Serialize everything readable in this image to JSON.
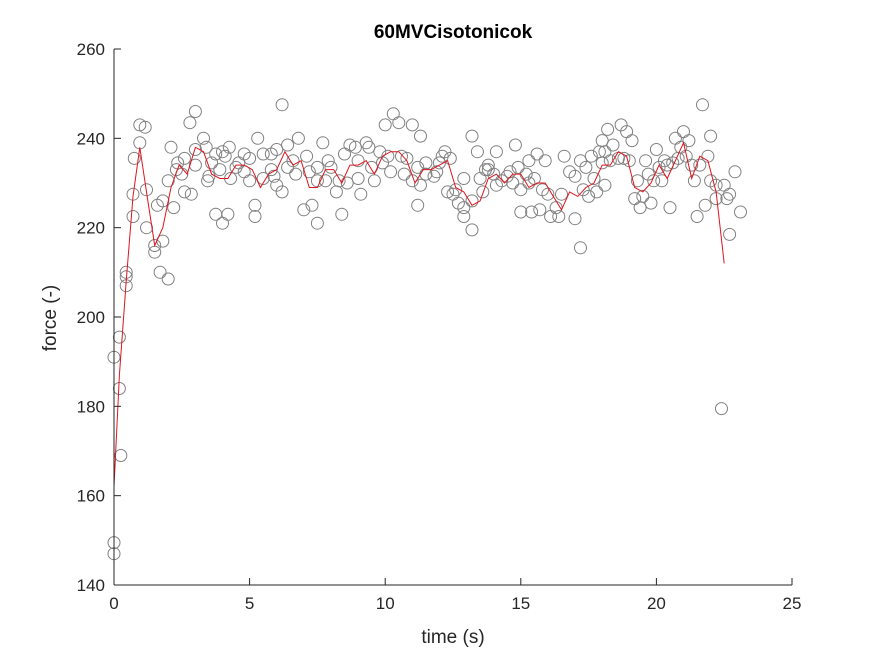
{
  "chart_data": {
    "type": "scatter",
    "title": "60MVCisotonicok",
    "xlabel": "time (s)",
    "ylabel": "force (-)",
    "xlim": [
      0,
      25
    ],
    "ylim": [
      140,
      260
    ],
    "xticks": [
      0,
      5,
      10,
      15,
      20,
      25
    ],
    "yticks": [
      140,
      160,
      180,
      200,
      220,
      240,
      260
    ],
    "grid": false,
    "colors": {
      "points": "#808080",
      "line": "#e0141e",
      "axis": "#262626"
    },
    "series": [
      {
        "type": "scatter",
        "marker": "circle-open",
        "points": [
          [
            0.0,
            147
          ],
          [
            0.0,
            149.5
          ],
          [
            0.0,
            191
          ],
          [
            0.2,
            184
          ],
          [
            0.2,
            195.5
          ],
          [
            0.25,
            169
          ],
          [
            0.45,
            207
          ],
          [
            0.45,
            209
          ],
          [
            0.45,
            210
          ],
          [
            0.7,
            222.5
          ],
          [
            0.7,
            227.5
          ],
          [
            0.75,
            235.5
          ],
          [
            0.95,
            239
          ],
          [
            0.95,
            243
          ],
          [
            1.15,
            242.5
          ],
          [
            1.2,
            228.5
          ],
          [
            1.2,
            220
          ],
          [
            1.5,
            214.5
          ],
          [
            1.5,
            216
          ],
          [
            1.6,
            225
          ],
          [
            1.7,
            210
          ],
          [
            1.8,
            217
          ],
          [
            1.8,
            226
          ],
          [
            2.0,
            208.5
          ],
          [
            2.0,
            230.5
          ],
          [
            2.1,
            238
          ],
          [
            2.2,
            224.5
          ],
          [
            2.3,
            233
          ],
          [
            2.35,
            234.5
          ],
          [
            2.5,
            232
          ],
          [
            2.6,
            228
          ],
          [
            2.6,
            235.5
          ],
          [
            2.8,
            243.5
          ],
          [
            2.85,
            227.5
          ],
          [
            3.0,
            234
          ],
          [
            3.0,
            237.5
          ],
          [
            3.0,
            246
          ],
          [
            3.3,
            240
          ],
          [
            3.4,
            238
          ],
          [
            3.45,
            230.5
          ],
          [
            3.5,
            231.5
          ],
          [
            3.6,
            234.5
          ],
          [
            3.75,
            223
          ],
          [
            3.75,
            236.5
          ],
          [
            3.9,
            233
          ],
          [
            4.0,
            221
          ],
          [
            4.0,
            237
          ],
          [
            4.1,
            236
          ],
          [
            4.2,
            223
          ],
          [
            4.25,
            238
          ],
          [
            4.3,
            231
          ],
          [
            4.5,
            233.5
          ],
          [
            4.6,
            234.5
          ],
          [
            4.8,
            232.5
          ],
          [
            4.8,
            236.5
          ],
          [
            5.0,
            230.5
          ],
          [
            5.0,
            235.5
          ],
          [
            5.2,
            222.5
          ],
          [
            5.2,
            225
          ],
          [
            5.3,
            240
          ],
          [
            5.5,
            236.5
          ],
          [
            5.5,
            231
          ],
          [
            5.8,
            236.5
          ],
          [
            5.8,
            233
          ],
          [
            5.9,
            231.5
          ],
          [
            6.0,
            229.5
          ],
          [
            6.0,
            237.5
          ],
          [
            6.2,
            228
          ],
          [
            6.2,
            247.5
          ],
          [
            6.4,
            233.5
          ],
          [
            6.4,
            238.5
          ],
          [
            6.6,
            235
          ],
          [
            6.7,
            232
          ],
          [
            6.8,
            240
          ],
          [
            7.0,
            224
          ],
          [
            7.1,
            236
          ],
          [
            7.2,
            232.5
          ],
          [
            7.3,
            225
          ],
          [
            7.5,
            230.5
          ],
          [
            7.5,
            233.5
          ],
          [
            7.5,
            221
          ],
          [
            7.7,
            239
          ],
          [
            7.8,
            230.5
          ],
          [
            7.9,
            235
          ],
          [
            8.0,
            233.5
          ],
          [
            8.2,
            228
          ],
          [
            8.3,
            230.5
          ],
          [
            8.4,
            223
          ],
          [
            8.5,
            236.5
          ],
          [
            8.6,
            230
          ],
          [
            8.7,
            238.5
          ],
          [
            8.9,
            238
          ],
          [
            9.0,
            235
          ],
          [
            9.0,
            231
          ],
          [
            9.1,
            227.5
          ],
          [
            9.3,
            239
          ],
          [
            9.4,
            238
          ],
          [
            9.5,
            233.5
          ],
          [
            9.6,
            230.5
          ],
          [
            9.8,
            237
          ],
          [
            9.9,
            234.5
          ],
          [
            10.0,
            243
          ],
          [
            10.1,
            236
          ],
          [
            10.2,
            232.5
          ],
          [
            10.3,
            245.5
          ],
          [
            10.5,
            243.5
          ],
          [
            10.6,
            236
          ],
          [
            10.7,
            232
          ],
          [
            10.8,
            235.5
          ],
          [
            11.0,
            243
          ],
          [
            11.0,
            230.5
          ],
          [
            11.2,
            233.5
          ],
          [
            11.2,
            225
          ],
          [
            11.3,
            229.5
          ],
          [
            11.3,
            240.5
          ],
          [
            11.5,
            232
          ],
          [
            11.5,
            234.5
          ],
          [
            11.8,
            231.5
          ],
          [
            11.9,
            232.5
          ],
          [
            12.0,
            234.5
          ],
          [
            12.1,
            236
          ],
          [
            12.2,
            237
          ],
          [
            12.3,
            228
          ],
          [
            12.4,
            235.5
          ],
          [
            12.5,
            227.5
          ],
          [
            12.6,
            228.5
          ],
          [
            12.7,
            225.5
          ],
          [
            12.9,
            231
          ],
          [
            12.9,
            224.5
          ],
          [
            12.9,
            222.5
          ],
          [
            13.2,
            219.5
          ],
          [
            13.2,
            226
          ],
          [
            13.2,
            240.5
          ],
          [
            13.4,
            237
          ],
          [
            13.5,
            231
          ],
          [
            13.6,
            228
          ],
          [
            13.7,
            233
          ],
          [
            13.8,
            234
          ],
          [
            13.8,
            233
          ],
          [
            14.0,
            232
          ],
          [
            14.1,
            237
          ],
          [
            14.1,
            229.5
          ],
          [
            14.3,
            230.5
          ],
          [
            14.5,
            231.5
          ],
          [
            14.6,
            232.5
          ],
          [
            14.7,
            230
          ],
          [
            14.8,
            238.5
          ],
          [
            14.9,
            233.5
          ],
          [
            15.0,
            228.5
          ],
          [
            15.0,
            223.5
          ],
          [
            15.2,
            232
          ],
          [
            15.3,
            235
          ],
          [
            15.3,
            230
          ],
          [
            15.4,
            223.5
          ],
          [
            15.5,
            231
          ],
          [
            15.6,
            236.5
          ],
          [
            15.7,
            224
          ],
          [
            15.8,
            228.5
          ],
          [
            15.9,
            235
          ],
          [
            16.0,
            227.5
          ],
          [
            16.1,
            222.5
          ],
          [
            16.3,
            224.5
          ],
          [
            16.4,
            222.5
          ],
          [
            16.5,
            227.5
          ],
          [
            16.6,
            236
          ],
          [
            16.8,
            232.5
          ],
          [
            17.0,
            222
          ],
          [
            17.0,
            231.5
          ],
          [
            17.2,
            215.5
          ],
          [
            17.2,
            235
          ],
          [
            17.3,
            228.5
          ],
          [
            17.4,
            233.5
          ],
          [
            17.5,
            227
          ],
          [
            17.6,
            236
          ],
          [
            17.7,
            231
          ],
          [
            17.8,
            228
          ],
          [
            17.9,
            237
          ],
          [
            18.0,
            239.5
          ],
          [
            18.0,
            234.5
          ],
          [
            18.1,
            237
          ],
          [
            18.1,
            229.5
          ],
          [
            18.2,
            242
          ],
          [
            18.3,
            235
          ],
          [
            18.4,
            238.5
          ],
          [
            18.6,
            235.5
          ],
          [
            18.7,
            243
          ],
          [
            18.8,
            235.5
          ],
          [
            18.9,
            241.5
          ],
          [
            19.0,
            235
          ],
          [
            19.1,
            239.5
          ],
          [
            19.2,
            226.5
          ],
          [
            19.3,
            230.5
          ],
          [
            19.4,
            224.5
          ],
          [
            19.5,
            227
          ],
          [
            19.6,
            235
          ],
          [
            19.7,
            232
          ],
          [
            19.8,
            225.5
          ],
          [
            19.9,
            230.5
          ],
          [
            20.0,
            237.5
          ],
          [
            20.1,
            233.5
          ],
          [
            20.2,
            230.5
          ],
          [
            20.3,
            235
          ],
          [
            20.4,
            234
          ],
          [
            20.5,
            224.5
          ],
          [
            20.6,
            234.5
          ],
          [
            20.7,
            240
          ],
          [
            20.8,
            235.5
          ],
          [
            20.9,
            238
          ],
          [
            21.0,
            241.5
          ],
          [
            21.1,
            236
          ],
          [
            21.2,
            239.5
          ],
          [
            21.3,
            234
          ],
          [
            21.4,
            230.5
          ],
          [
            21.5,
            222.5
          ],
          [
            21.6,
            234
          ],
          [
            21.7,
            247.5
          ],
          [
            21.8,
            225
          ],
          [
            21.9,
            236
          ],
          [
            22.0,
            240.5
          ],
          [
            22.0,
            230.5
          ],
          [
            22.2,
            229.5
          ],
          [
            22.2,
            226.5
          ],
          [
            22.4,
            179.5
          ],
          [
            22.5,
            229.5
          ],
          [
            22.6,
            226.5
          ],
          [
            22.7,
            218.5
          ],
          [
            22.7,
            227.5
          ],
          [
            22.9,
            232.5
          ],
          [
            23.1,
            223.5
          ]
        ]
      },
      {
        "type": "line",
        "points": [
          [
            0.0,
            162
          ],
          [
            0.2,
            187
          ],
          [
            0.45,
            208
          ],
          [
            0.7,
            227
          ],
          [
            0.95,
            238
          ],
          [
            1.2,
            228
          ],
          [
            1.5,
            216
          ],
          [
            1.8,
            220
          ],
          [
            2.1,
            229
          ],
          [
            2.4,
            234
          ],
          [
            2.7,
            232
          ],
          [
            3.0,
            238
          ],
          [
            3.3,
            237
          ],
          [
            3.6,
            232
          ],
          [
            3.9,
            231
          ],
          [
            4.2,
            231
          ],
          [
            4.5,
            234
          ],
          [
            4.8,
            234
          ],
          [
            5.1,
            233
          ],
          [
            5.4,
            229
          ],
          [
            5.7,
            232
          ],
          [
            6.0,
            233
          ],
          [
            6.3,
            237
          ],
          [
            6.6,
            234
          ],
          [
            6.9,
            235
          ],
          [
            7.2,
            229
          ],
          [
            7.5,
            229
          ],
          [
            7.8,
            233
          ],
          [
            8.1,
            233
          ],
          [
            8.4,
            230
          ],
          [
            8.7,
            234
          ],
          [
            9.0,
            234
          ],
          [
            9.3,
            235
          ],
          [
            9.6,
            232
          ],
          [
            9.9,
            236
          ],
          [
            10.2,
            237
          ],
          [
            10.5,
            237
          ],
          [
            10.8,
            235
          ],
          [
            11.1,
            230
          ],
          [
            11.4,
            233
          ],
          [
            11.7,
            233
          ],
          [
            12.0,
            234
          ],
          [
            12.3,
            235
          ],
          [
            12.6,
            229
          ],
          [
            12.9,
            228
          ],
          [
            13.2,
            225
          ],
          [
            13.5,
            226
          ],
          [
            13.8,
            231
          ],
          [
            14.1,
            232
          ],
          [
            14.4,
            230
          ],
          [
            14.7,
            232
          ],
          [
            15.0,
            232
          ],
          [
            15.3,
            229
          ],
          [
            15.6,
            230
          ],
          [
            15.9,
            230
          ],
          [
            16.2,
            227
          ],
          [
            16.5,
            224
          ],
          [
            16.8,
            228
          ],
          [
            17.1,
            227
          ],
          [
            17.4,
            229
          ],
          [
            17.7,
            230
          ],
          [
            18.0,
            234
          ],
          [
            18.3,
            234
          ],
          [
            18.6,
            237
          ],
          [
            18.9,
            236
          ],
          [
            19.2,
            229
          ],
          [
            19.5,
            228
          ],
          [
            19.8,
            230
          ],
          [
            20.1,
            234
          ],
          [
            20.4,
            231
          ],
          [
            20.7,
            235
          ],
          [
            21.0,
            239
          ],
          [
            21.3,
            231
          ],
          [
            21.6,
            236
          ],
          [
            21.9,
            235
          ],
          [
            22.2,
            228
          ],
          [
            22.5,
            212
          ]
        ]
      }
    ]
  }
}
